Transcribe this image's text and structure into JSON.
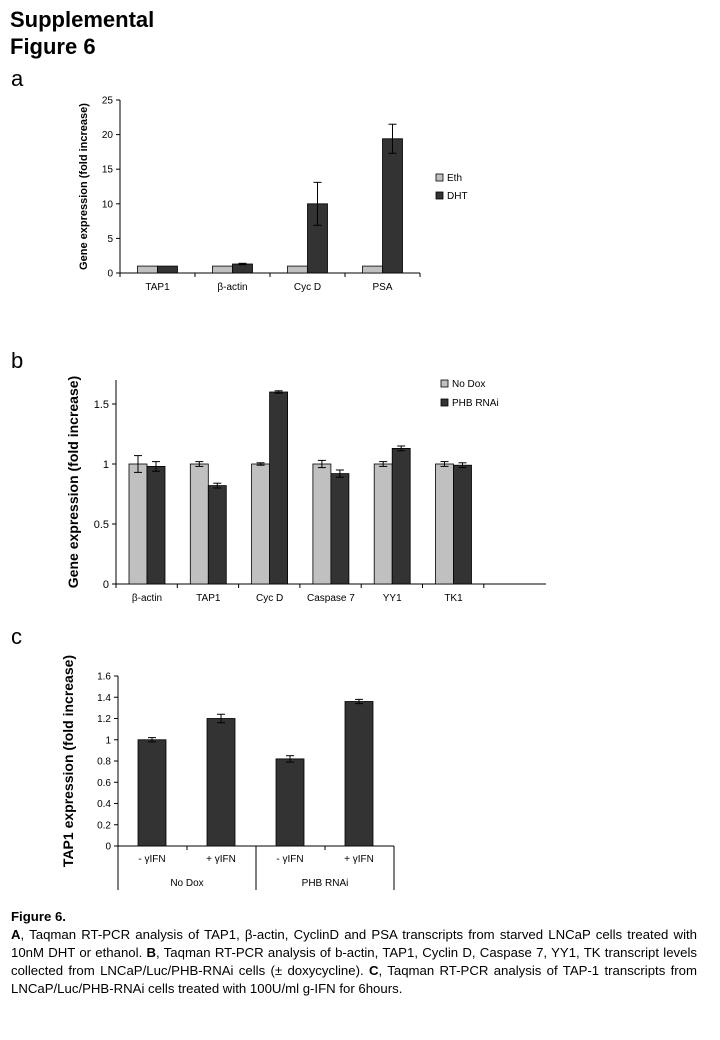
{
  "header": {
    "line1": "Supplemental",
    "line2": "Figure 6"
  },
  "panels": {
    "a": "a",
    "b": "b",
    "c": "c"
  },
  "chart_data": [
    {
      "type": "bar",
      "panel": "a",
      "ylabel": "Gene expression (fold increase)",
      "categories": [
        "TAP1",
        "β-actin",
        "Cyc D",
        "PSA"
      ],
      "ylim": [
        0,
        25
      ],
      "yticks": [
        "0",
        "5",
        "10",
        "15",
        "20",
        "25"
      ],
      "series": [
        {
          "name": "Eth",
          "color": "#c0c0c0",
          "values": [
            1,
            1,
            1,
            1
          ],
          "errors": [
            0,
            0,
            0,
            0
          ]
        },
        {
          "name": "DHT",
          "color": "#333333",
          "values": [
            1,
            1.3,
            10,
            19.4
          ],
          "errors": [
            0,
            0.1,
            3.1,
            2.1
          ]
        }
      ],
      "legend": "right"
    },
    {
      "type": "bar",
      "panel": "b",
      "ylabel": "Gene expression (fold increase)",
      "categories": [
        "β-actin",
        "TAP1",
        "Cyc D",
        "Caspase 7",
        "YY1",
        "TK1"
      ],
      "ylim": [
        0,
        1.7
      ],
      "yticks": [
        "0",
        "0.5",
        "1",
        "1.5"
      ],
      "series": [
        {
          "name": "No Dox",
          "color": "#c0c0c0",
          "values": [
            1,
            1,
            1,
            1,
            1,
            1
          ],
          "errors": [
            0.07,
            0.02,
            0.01,
            0.03,
            0.02,
            0.02
          ]
        },
        {
          "name": "PHB RNAi",
          "color": "#333333",
          "values": [
            0.98,
            0.82,
            1.6,
            0.92,
            1.13,
            0.99
          ],
          "errors": [
            0.04,
            0.02,
            0.01,
            0.03,
            0.02,
            0.02
          ]
        }
      ],
      "legend": "top-right"
    },
    {
      "type": "bar",
      "panel": "c",
      "ylabel": "TAP1 expression (fold increase)",
      "categories": [
        "- γIFN",
        "+ γIFN",
        "- γIFN",
        "+ γIFN"
      ],
      "groups": [
        "No Dox",
        "PHB RNAi"
      ],
      "ylim": [
        0,
        1.6
      ],
      "yticks": [
        "0",
        "0.2",
        "0.4",
        "0.6",
        "0.8",
        "1",
        "1.2",
        "1.4",
        "1.6"
      ],
      "series": [
        {
          "name": "",
          "color": "#333333",
          "values": [
            1.0,
            1.2,
            0.82,
            1.36
          ],
          "errors": [
            0.02,
            0.04,
            0.03,
            0.02
          ]
        }
      ]
    }
  ],
  "caption": {
    "title": "Figure 6.",
    "a_letter": "A",
    "a_text": ", Taqman RT-PCR analysis of TAP1, β-actin, CyclinD and PSA transcripts from starved LNCaP cells treated with 10nM DHT or ethanol. ",
    "b_letter": "B",
    "b_text": ", Taqman RT-PCR analysis of b-actin, TAP1, Cyclin D, Caspase 7, YY1, TK transcript levels collected from LNCaP/Luc/PHB-RNAi cells (± doxycycline). ",
    "c_letter": "C",
    "c_text": ", Taqman RT-PCR analysis of TAP-1 transcripts from LNCaP/Luc/PHB-RNAi cells treated with 100U/ml g-IFN for 6hours."
  }
}
